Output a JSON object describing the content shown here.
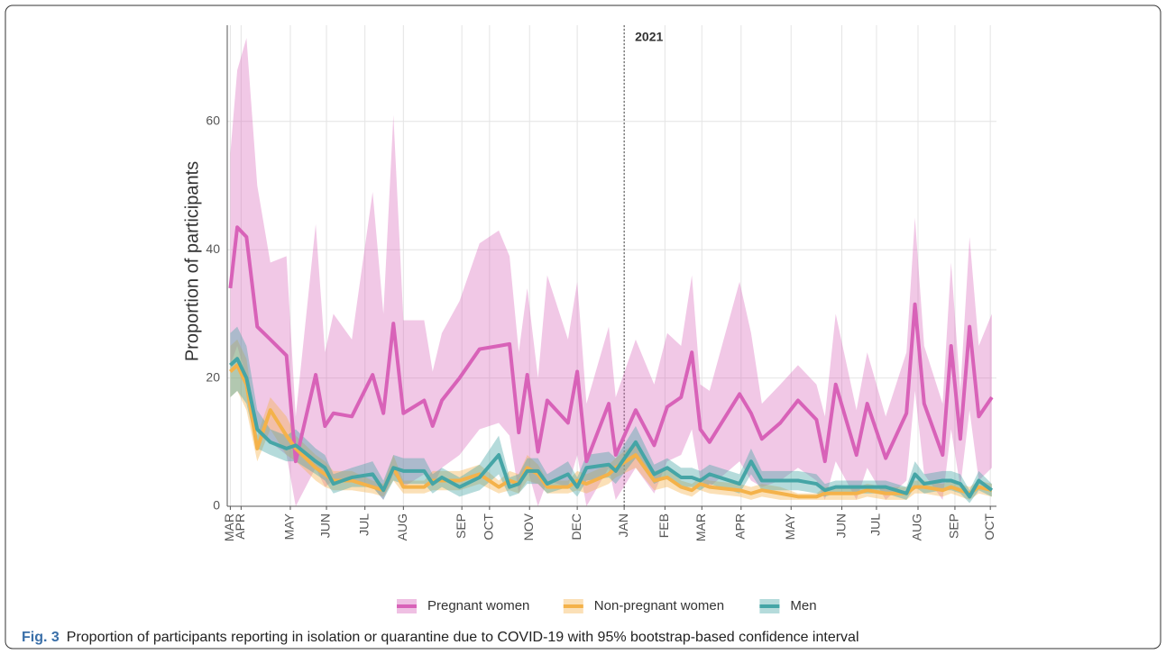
{
  "chart_data": {
    "type": "line",
    "ylabel": "Proportion of participants",
    "annotation": {
      "text": "2021",
      "x": 51.6
    },
    "caption_label": "Fig. 3",
    "caption": "Proportion of participants reporting in isolation or quarantine due to COVID-19 with 95% bootstrap-based confidence interval",
    "xlim": [
      0,
      100
    ],
    "xticks": [
      {
        "value": 0.4,
        "label": "MAR"
      },
      {
        "value": 1.8,
        "label": "APR"
      },
      {
        "value": 8.2,
        "label": "MAY"
      },
      {
        "value": 12.9,
        "label": "JUN"
      },
      {
        "value": 17.9,
        "label": "JUL"
      },
      {
        "value": 22.9,
        "label": "AUG"
      },
      {
        "value": 30.5,
        "label": "SEP"
      },
      {
        "value": 34.1,
        "label": "OCT"
      },
      {
        "value": 39.3,
        "label": "NOV"
      },
      {
        "value": 45.5,
        "label": "DEC"
      },
      {
        "value": 51.6,
        "label": "JAN"
      },
      {
        "value": 56.9,
        "label": "FEB"
      },
      {
        "value": 61.7,
        "label": "MAR"
      },
      {
        "value": 66.8,
        "label": "APR"
      },
      {
        "value": 73.3,
        "label": "MAY"
      },
      {
        "value": 79.9,
        "label": "JUN"
      },
      {
        "value": 84.4,
        "label": "JUL"
      },
      {
        "value": 89.8,
        "label": "AUG"
      },
      {
        "value": 94.6,
        "label": "SEP"
      },
      {
        "value": 99.2,
        "label": "OCT"
      }
    ],
    "ylim": [
      0,
      75
    ],
    "yticks": [
      0,
      20,
      40,
      60
    ],
    "grid": true,
    "legend": "bottom",
    "x": [
      0.4,
      1.3,
      2.5,
      3.9,
      5.6,
      7.7,
      8.9,
      11.5,
      12.7,
      13.8,
      16.2,
      18.9,
      20.3,
      21.6,
      22.9,
      25.6,
      26.7,
      27.9,
      30.2,
      32.8,
      35.3,
      36.7,
      37.9,
      39.0,
      40.4,
      41.6,
      44.3,
      45.5,
      46.7,
      49.6,
      50.5,
      53.1,
      55.5,
      57.2,
      59.0,
      60.4,
      61.5,
      62.7,
      66.6,
      68.1,
      69.5,
      71.9,
      74.2,
      76.6,
      77.7,
      79.1,
      81.8,
      83.2,
      85.6,
      88.3,
      89.4,
      90.6,
      93.0,
      94.1,
      95.3,
      96.5,
      97.7,
      99.4
    ],
    "series": [
      {
        "name": "Pregnant women",
        "color": "#d862b8",
        "values": [
          34,
          43.5,
          42,
          28,
          26,
          23.5,
          7,
          20.5,
          12.5,
          14.5,
          14,
          20.5,
          14.5,
          28.5,
          14.5,
          16.5,
          12.5,
          16.5,
          20,
          24.5,
          25,
          25.3,
          11.5,
          20.5,
          8.5,
          16.5,
          13,
          21,
          7,
          16,
          8,
          15,
          9.5,
          15.5,
          17,
          24,
          12,
          10,
          17.5,
          14.5,
          10.5,
          13,
          16.5,
          13.5,
          7,
          19,
          8,
          16,
          7.5,
          14.5,
          31.5,
          16,
          8,
          25,
          10.5,
          28,
          14,
          17
        ],
        "lower": [
          22,
          25,
          20,
          12,
          10,
          8,
          0,
          6,
          3,
          4,
          4,
          3,
          1,
          5,
          3,
          5,
          3,
          6,
          8,
          12,
          13,
          11,
          2,
          6,
          0,
          4,
          3,
          8,
          0,
          6,
          1,
          6,
          2,
          7,
          8,
          12,
          4,
          3,
          7,
          4,
          3,
          4,
          6,
          4,
          1,
          7,
          1,
          6,
          1,
          4,
          18,
          5,
          1,
          12,
          3,
          15,
          4,
          6
        ],
        "upper": [
          55,
          68,
          73,
          50,
          38,
          39,
          14,
          44,
          24,
          30,
          26,
          49,
          30,
          61,
          29,
          29,
          21,
          27,
          32,
          41,
          43,
          39,
          24,
          34,
          20,
          36,
          26,
          35,
          16,
          28,
          17,
          26,
          19,
          27,
          25,
          36,
          19,
          18,
          35,
          27,
          16,
          19,
          22,
          19,
          14,
          30,
          15,
          24,
          14,
          24,
          45,
          25,
          16,
          38,
          18,
          42,
          25,
          30
        ]
      },
      {
        "name": "Non-pregnant women",
        "color": "#f4b24a",
        "values": [
          21,
          22,
          19,
          9,
          15,
          11,
          9,
          6,
          5,
          4,
          4,
          3,
          2.5,
          6,
          3,
          3,
          4,
          4,
          4,
          5,
          3,
          4,
          3.5,
          6,
          5,
          3,
          3,
          4,
          3.5,
          5,
          6,
          8,
          4,
          4.5,
          3,
          2.5,
          3.5,
          3,
          2.5,
          2,
          2.5,
          2,
          1.5,
          1.5,
          2,
          2,
          2,
          2.5,
          2,
          2,
          3,
          3,
          2.5,
          3,
          2.5,
          2,
          3,
          2.5
        ],
        "lower": [
          17,
          18,
          15,
          7,
          12,
          8,
          7,
          4,
          3,
          2.5,
          2.5,
          2,
          1.5,
          4,
          2,
          2,
          2.5,
          2.5,
          2.5,
          3.5,
          2,
          2.5,
          2,
          4,
          3.5,
          2,
          2,
          2.5,
          2,
          3.5,
          4.5,
          6,
          2.5,
          3,
          2,
          1.5,
          2.5,
          2,
          1.5,
          1,
          1.5,
          1,
          1,
          1,
          1,
          1,
          1,
          1.5,
          1,
          1,
          2,
          2,
          1.5,
          2,
          1.5,
          1,
          2,
          1.5
        ],
        "upper": [
          25,
          26,
          23,
          11,
          17,
          14,
          11,
          8,
          7,
          5.5,
          5.5,
          4,
          3.5,
          8,
          4,
          4,
          5.5,
          5.5,
          5.5,
          6.5,
          4,
          5.5,
          5,
          8,
          6.5,
          4,
          4,
          5.5,
          5,
          6.5,
          7.5,
          10,
          5.5,
          6,
          4,
          3.5,
          4.5,
          4,
          3.5,
          3,
          3.5,
          3,
          2,
          2,
          3,
          3,
          3,
          3.5,
          3,
          3,
          4,
          4,
          3.5,
          4,
          3.5,
          3,
          4,
          3.5
        ]
      },
      {
        "name": "Men",
        "color": "#45a5a6",
        "values": [
          22,
          23,
          20,
          12,
          10,
          9,
          9.5,
          7,
          6,
          3.5,
          4.5,
          5,
          2.5,
          6,
          5.5,
          5.5,
          3.5,
          4.5,
          3,
          4.5,
          8,
          3,
          3.5,
          5.5,
          5.5,
          3.5,
          5,
          3,
          6,
          6.5,
          5.5,
          10,
          5,
          6,
          4.5,
          4.5,
          4,
          5,
          3.5,
          7,
          4,
          4,
          4,
          3.5,
          2.5,
          3,
          3,
          3,
          3,
          2,
          5,
          3.5,
          4,
          4,
          3.5,
          1.5,
          4,
          2.5
        ],
        "lower": [
          17,
          18,
          16,
          9,
          8,
          7,
          7,
          5,
          4,
          2,
          3,
          3,
          1,
          4,
          3.5,
          3.5,
          2,
          3,
          1.5,
          2.5,
          5,
          1.5,
          2,
          3.5,
          3.5,
          2,
          3,
          1.5,
          4,
          4.5,
          3.5,
          7.5,
          3.5,
          4.5,
          3,
          3,
          2.5,
          3.5,
          2,
          5,
          2.5,
          2.5,
          2.5,
          2,
          1.5,
          2,
          2,
          2,
          2,
          1,
          3,
          2,
          2.5,
          2.5,
          2,
          0.5,
          2.5,
          1.5
        ],
        "upper": [
          27,
          28,
          25,
          15,
          12,
          11,
          12,
          9,
          8,
          5,
          6,
          7,
          4,
          8,
          7.5,
          7.5,
          5,
          6,
          4.5,
          6.5,
          11,
          4.5,
          5,
          7.5,
          7.5,
          5,
          7,
          4.5,
          8,
          8.5,
          7.5,
          12.5,
          6.5,
          7.5,
          6,
          6,
          5.5,
          6.5,
          5,
          9,
          5.5,
          5.5,
          5.5,
          5,
          3.5,
          4,
          4,
          4,
          4,
          3,
          7,
          5,
          5.5,
          5.5,
          5,
          2.5,
          5.5,
          3.5
        ]
      }
    ]
  }
}
